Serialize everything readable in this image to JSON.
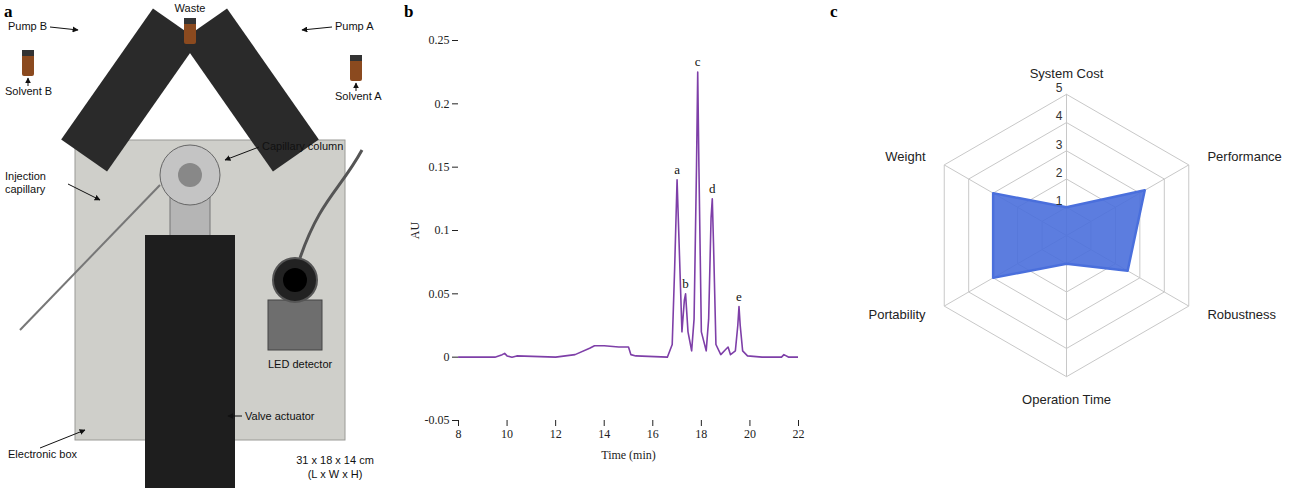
{
  "photo_panel": {
    "panel": "a",
    "labels": [
      "Pump B",
      "Waste",
      "Pump A",
      "Solvent B",
      "Solvent A",
      "Injection capillary",
      "Capillary column",
      "LED detector",
      "Electronic box",
      "Valve actuator"
    ],
    "size_note": [
      "31 x 18 x 14 cm",
      "(L x W x H)"
    ]
  },
  "chart_data": [
    {
      "panel": "b",
      "type": "line",
      "color": "#7e3fa8",
      "xlabel": "Time (min)",
      "ylabel": "AU",
      "x": [
        8,
        9.5,
        9.8,
        9.9,
        10.0,
        10.2,
        10.4,
        12,
        12.8,
        13.4,
        13.6,
        14.0,
        14.6,
        15.0,
        15.1,
        15.3,
        16.6,
        16.8,
        16.9,
        17.0,
        17.1,
        17.2,
        17.3,
        17.35,
        17.45,
        17.6,
        17.7,
        17.8,
        17.85,
        17.9,
        18.0,
        18.2,
        18.3,
        18.4,
        18.45,
        18.5,
        18.6,
        18.8,
        19.0,
        19.1,
        19.2,
        19.4,
        19.5,
        19.55,
        19.6,
        19.7,
        19.9,
        20.5,
        21.3,
        21.4,
        21.6,
        22
      ],
      "values": [
        0,
        0,
        0.002,
        0.003,
        0.001,
        0,
        0.001,
        0,
        0.002,
        0.007,
        0.009,
        0.009,
        0.008,
        0.008,
        0.002,
        0.001,
        0,
        0.01,
        0.07,
        0.14,
        0.08,
        0.02,
        0.045,
        0.05,
        0.02,
        0.005,
        0.03,
        0.15,
        0.225,
        0.15,
        0.02,
        0.005,
        0.03,
        0.11,
        0.125,
        0.09,
        0.01,
        0.002,
        0.006,
        0.008,
        0.002,
        0.005,
        0.025,
        0.04,
        0.025,
        0.005,
        0.001,
        0,
        0,
        0.002,
        0,
        0
      ],
      "xlim": [
        8,
        22
      ],
      "xticks": [
        8,
        10,
        12,
        14,
        16,
        18,
        20,
        22
      ],
      "ylim": [
        -0.05,
        0.25
      ],
      "yticks": [
        -0.05,
        0,
        0.05,
        0.1,
        0.15,
        0.2,
        0.25
      ],
      "annotations": [
        {
          "text": "a",
          "x": 17.0,
          "y": 0.14
        },
        {
          "text": "b",
          "x": 17.35,
          "y": 0.05
        },
        {
          "text": "c",
          "x": 17.85,
          "y": 0.225
        },
        {
          "text": "d",
          "x": 18.45,
          "y": 0.125
        },
        {
          "text": "e",
          "x": 19.55,
          "y": 0.04
        }
      ]
    },
    {
      "panel": "c",
      "type": "radar",
      "color": "#4a6fdc",
      "categories": [
        "System Cost",
        "Performance",
        "Robustness",
        "Operation Time",
        "Portability",
        "Weight"
      ],
      "values": [
        1,
        3.2,
        2.5,
        1,
        3,
        3
      ],
      "ylim": [
        0,
        5
      ],
      "yticks": [
        1,
        2,
        3,
        4,
        5
      ],
      "grid": true
    }
  ]
}
